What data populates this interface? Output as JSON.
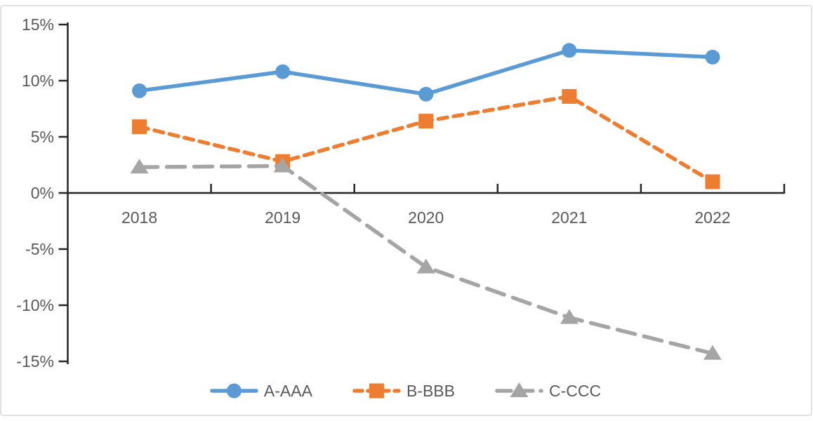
{
  "chart_data": {
    "type": "line",
    "title": "",
    "xlabel": "",
    "ylabel": "",
    "categories": [
      "2018",
      "2019",
      "2020",
      "2021",
      "2022"
    ],
    "series": [
      {
        "name": "A-AAA",
        "color": "#5B9BD5",
        "marker": "circle",
        "line_style": "solid",
        "values": [
          9.1,
          10.8,
          8.8,
          12.7,
          12.1
        ]
      },
      {
        "name": "B-BBB",
        "color": "#ED7D31",
        "marker": "square",
        "line_style": "dashed",
        "values": [
          5.9,
          2.8,
          6.4,
          8.6,
          1.0
        ]
      },
      {
        "name": "C-CCC",
        "color": "#A5A5A5",
        "marker": "triangle",
        "line_style": "long-dash",
        "values": [
          2.3,
          2.4,
          -6.6,
          -11.1,
          -14.3
        ]
      }
    ],
    "ylim": [
      -15,
      15
    ],
    "ytick_step": 5,
    "y_tick_labels": [
      "15%",
      "10%",
      "5%",
      "0%",
      "-5%",
      "-10%",
      "-15%"
    ],
    "grid": false,
    "legend_position": "bottom-center",
    "axis_color": "#262626",
    "label_color": "#595959",
    "border_color": "#D9D9D9",
    "background": "#FFFFFF"
  }
}
